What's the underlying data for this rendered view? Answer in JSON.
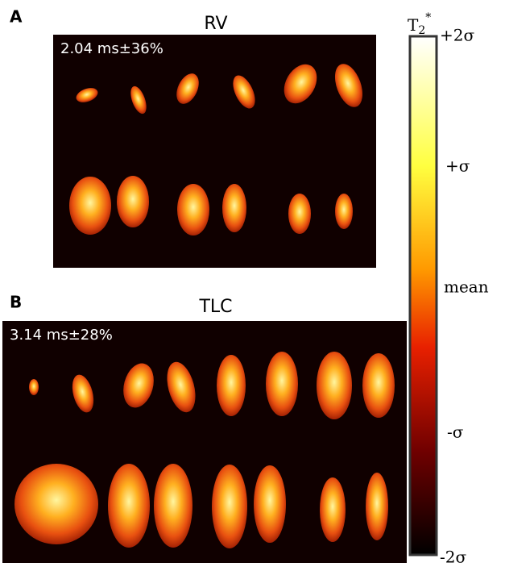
{
  "panels": [
    {
      "label": "A",
      "title": "RV",
      "stat": "2.04 ms±36%"
    },
    {
      "label": "B",
      "title": "TLC",
      "stat": "3.14 ms±28%"
    }
  ],
  "colorbar": {
    "title": {
      "base": "T",
      "sub": "2",
      "sup": "*"
    },
    "labels": [
      "+2σ",
      "+σ",
      "mean",
      "-σ",
      "-2σ"
    ]
  }
}
